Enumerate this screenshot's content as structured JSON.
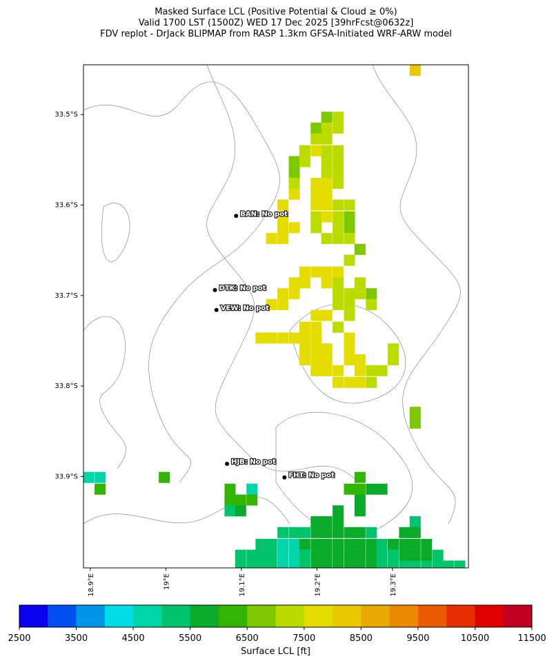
{
  "title": [
    "Masked Surface LCL (Positive Potential & Cloud ≥ 0%)",
    "Valid 1700 LST (1500Z) WED 17 Dec 2025 [39hrFcst@0632z]",
    "FDV replot - DrJack BLIPMAP from RASP 1.3km GFSA-Initiated WRF-ARW model"
  ],
  "map": {
    "xlim": [
      18.891,
      19.4005
    ],
    "ylim": [
      -34.001,
      -33.445
    ],
    "xticks": [
      {
        "value": 18.9,
        "label": "18.9°E"
      },
      {
        "value": 19.0,
        "label": "19°E"
      },
      {
        "value": 19.1,
        "label": "19.1°E"
      },
      {
        "value": 19.2,
        "label": "19.2°E"
      },
      {
        "value": 19.3,
        "label": "19.3°E"
      }
    ],
    "yticks": [
      {
        "value": -33.5,
        "label": "33.5°S"
      },
      {
        "value": -33.6,
        "label": "33.6°S"
      },
      {
        "value": -33.7,
        "label": "33.7°S"
      },
      {
        "value": -33.8,
        "label": "33.8°S"
      },
      {
        "value": -33.9,
        "label": "33.9°S"
      }
    ],
    "stations": [
      {
        "label": "BAN: No pot",
        "lon": 19.093,
        "lat": -33.612
      },
      {
        "label": "DTK: No pot",
        "lon": 19.065,
        "lat": -33.694
      },
      {
        "label": "VEW: No pot",
        "lon": 19.067,
        "lat": -33.716
      },
      {
        "label": "HJB: No pot",
        "lon": 19.081,
        "lat": -33.886
      },
      {
        "label": "FHT: No pot",
        "lon": 19.157,
        "lat": -33.901
      }
    ],
    "cells": [
      [
        19.213,
        -33.503,
        6750
      ],
      [
        19.228,
        -33.503,
        7250
      ],
      [
        19.199,
        -33.515,
        6750
      ],
      [
        19.213,
        -33.515,
        7250
      ],
      [
        19.228,
        -33.515,
        7250
      ],
      [
        19.199,
        -33.527,
        7250
      ],
      [
        19.213,
        -33.527,
        7250
      ],
      [
        19.184,
        -33.54,
        7250
      ],
      [
        19.199,
        -33.54,
        7750
      ],
      [
        19.213,
        -33.54,
        7250
      ],
      [
        19.228,
        -33.54,
        7250
      ],
      [
        19.17,
        -33.552,
        6750
      ],
      [
        19.184,
        -33.552,
        7250
      ],
      [
        19.213,
        -33.552,
        7250
      ],
      [
        19.228,
        -33.552,
        7250
      ],
      [
        19.17,
        -33.564,
        6750
      ],
      [
        19.213,
        -33.564,
        7250
      ],
      [
        19.228,
        -33.564,
        7250
      ],
      [
        19.17,
        -33.576,
        7250
      ],
      [
        19.199,
        -33.576,
        7750
      ],
      [
        19.213,
        -33.576,
        7750
      ],
      [
        19.228,
        -33.576,
        7250
      ],
      [
        19.17,
        -33.588,
        7750
      ],
      [
        19.199,
        -33.588,
        7750
      ],
      [
        19.213,
        -33.588,
        7750
      ],
      [
        19.155,
        -33.6,
        7750
      ],
      [
        19.199,
        -33.6,
        7750
      ],
      [
        19.213,
        -33.6,
        7750
      ],
      [
        19.228,
        -33.6,
        7250
      ],
      [
        19.243,
        -33.6,
        7250
      ],
      [
        19.155,
        -33.613,
        7750
      ],
      [
        19.199,
        -33.613,
        7250
      ],
      [
        19.213,
        -33.613,
        7750
      ],
      [
        19.228,
        -33.613,
        7250
      ],
      [
        19.243,
        -33.613,
        6750
      ],
      [
        19.155,
        -33.625,
        7750
      ],
      [
        19.17,
        -33.625,
        7750
      ],
      [
        19.199,
        -33.625,
        7250
      ],
      [
        19.228,
        -33.625,
        7250
      ],
      [
        19.243,
        -33.625,
        6750
      ],
      [
        19.14,
        -33.637,
        7750
      ],
      [
        19.155,
        -33.637,
        7750
      ],
      [
        19.213,
        -33.637,
        7250
      ],
      [
        19.228,
        -33.637,
        7250
      ],
      [
        19.243,
        -33.637,
        7250
      ],
      [
        19.257,
        -33.649,
        6750
      ],
      [
        19.243,
        -33.661,
        7250
      ],
      [
        19.184,
        -33.674,
        7750
      ],
      [
        19.199,
        -33.674,
        7750
      ],
      [
        19.213,
        -33.674,
        7750
      ],
      [
        19.228,
        -33.674,
        7750
      ],
      [
        19.17,
        -33.686,
        7750
      ],
      [
        19.184,
        -33.686,
        7750
      ],
      [
        19.213,
        -33.686,
        7750
      ],
      [
        19.228,
        -33.686,
        7250
      ],
      [
        19.257,
        -33.686,
        7250
      ],
      [
        19.155,
        -33.698,
        7750
      ],
      [
        19.17,
        -33.698,
        7750
      ],
      [
        19.228,
        -33.698,
        7250
      ],
      [
        19.243,
        -33.698,
        7250
      ],
      [
        19.257,
        -33.698,
        7250
      ],
      [
        19.272,
        -33.698,
        6750
      ],
      [
        19.14,
        -33.71,
        7750
      ],
      [
        19.155,
        -33.71,
        7750
      ],
      [
        19.228,
        -33.71,
        7250
      ],
      [
        19.243,
        -33.71,
        7250
      ],
      [
        19.272,
        -33.71,
        7250
      ],
      [
        19.199,
        -33.722,
        7750
      ],
      [
        19.213,
        -33.722,
        7750
      ],
      [
        19.243,
        -33.722,
        7250
      ],
      [
        19.184,
        -33.735,
        7750
      ],
      [
        19.199,
        -33.735,
        7750
      ],
      [
        19.228,
        -33.735,
        7250
      ],
      [
        19.126,
        -33.747,
        7750
      ],
      [
        19.14,
        -33.747,
        7750
      ],
      [
        19.155,
        -33.747,
        7750
      ],
      [
        19.17,
        -33.747,
        7750
      ],
      [
        19.184,
        -33.747,
        7750
      ],
      [
        19.199,
        -33.747,
        7750
      ],
      [
        19.243,
        -33.747,
        7750
      ],
      [
        19.184,
        -33.759,
        7750
      ],
      [
        19.199,
        -33.759,
        7750
      ],
      [
        19.213,
        -33.759,
        7750
      ],
      [
        19.243,
        -33.759,
        7750
      ],
      [
        19.301,
        -33.759,
        7250
      ],
      [
        19.184,
        -33.771,
        7750
      ],
      [
        19.199,
        -33.771,
        7750
      ],
      [
        19.213,
        -33.771,
        7750
      ],
      [
        19.243,
        -33.771,
        7750
      ],
      [
        19.257,
        -33.771,
        7750
      ],
      [
        19.301,
        -33.771,
        7250
      ],
      [
        19.199,
        -33.783,
        7750
      ],
      [
        19.213,
        -33.783,
        7750
      ],
      [
        19.228,
        -33.783,
        7750
      ],
      [
        19.257,
        -33.783,
        7750
      ],
      [
        19.272,
        -33.783,
        7250
      ],
      [
        19.286,
        -33.783,
        7250
      ],
      [
        19.228,
        -33.796,
        7750
      ],
      [
        19.243,
        -33.796,
        7750
      ],
      [
        19.257,
        -33.796,
        7750
      ],
      [
        19.272,
        -33.796,
        7250
      ],
      [
        19.33,
        -33.829,
        6750
      ],
      [
        19.33,
        -33.841,
        6750
      ],
      [
        19.33,
        -33.451,
        8250
      ],
      [
        18.898,
        -33.901,
        4750
      ],
      [
        18.913,
        -33.901,
        4750
      ],
      [
        18.913,
        -33.914,
        6250
      ],
      [
        18.998,
        -33.901,
        6250
      ],
      [
        19.085,
        -33.914,
        6250
      ],
      [
        19.114,
        -33.914,
        4750
      ],
      [
        19.085,
        -33.926,
        6250
      ],
      [
        19.099,
        -33.926,
        6250
      ],
      [
        19.114,
        -33.926,
        6250
      ],
      [
        19.085,
        -33.938,
        5250
      ],
      [
        19.099,
        -33.938,
        5750
      ],
      [
        19.257,
        -33.901,
        6250
      ],
      [
        19.243,
        -33.914,
        6250
      ],
      [
        19.257,
        -33.914,
        6250
      ],
      [
        19.272,
        -33.914,
        5750
      ],
      [
        19.286,
        -33.914,
        5750
      ],
      [
        19.257,
        -33.926,
        5750
      ],
      [
        19.257,
        -33.938,
        5750
      ],
      [
        19.228,
        -33.938,
        5750
      ],
      [
        19.199,
        -33.95,
        5750
      ],
      [
        19.213,
        -33.95,
        5750
      ],
      [
        19.228,
        -33.95,
        5750
      ],
      [
        19.33,
        -33.95,
        5250
      ],
      [
        19.155,
        -33.962,
        5250
      ],
      [
        19.17,
        -33.962,
        5250
      ],
      [
        19.184,
        -33.962,
        5250
      ],
      [
        19.199,
        -33.962,
        5750
      ],
      [
        19.213,
        -33.962,
        5750
      ],
      [
        19.228,
        -33.962,
        5750
      ],
      [
        19.243,
        -33.962,
        5750
      ],
      [
        19.257,
        -33.962,
        5750
      ],
      [
        19.272,
        -33.962,
        5250
      ],
      [
        19.316,
        -33.962,
        5750
      ],
      [
        19.33,
        -33.962,
        5750
      ],
      [
        19.126,
        -33.975,
        5250
      ],
      [
        19.14,
        -33.975,
        5250
      ],
      [
        19.155,
        -33.975,
        4750
      ],
      [
        19.17,
        -33.975,
        4750
      ],
      [
        19.184,
        -33.975,
        5750
      ],
      [
        19.199,
        -33.975,
        5750
      ],
      [
        19.213,
        -33.975,
        5750
      ],
      [
        19.228,
        -33.975,
        5750
      ],
      [
        19.243,
        -33.975,
        5750
      ],
      [
        19.257,
        -33.975,
        5750
      ],
      [
        19.272,
        -33.975,
        5750
      ],
      [
        19.286,
        -33.975,
        5250
      ],
      [
        19.301,
        -33.975,
        5750
      ],
      [
        19.316,
        -33.975,
        5750
      ],
      [
        19.33,
        -33.975,
        5750
      ],
      [
        19.345,
        -33.975,
        5750
      ],
      [
        19.099,
        -33.987,
        5250
      ],
      [
        19.114,
        -33.987,
        5250
      ],
      [
        19.126,
        -33.987,
        5250
      ],
      [
        19.14,
        -33.987,
        5250
      ],
      [
        19.155,
        -33.987,
        4750
      ],
      [
        19.17,
        -33.987,
        4750
      ],
      [
        19.184,
        -33.987,
        5250
      ],
      [
        19.199,
        -33.987,
        5750
      ],
      [
        19.213,
        -33.987,
        5750
      ],
      [
        19.228,
        -33.987,
        5750
      ],
      [
        19.243,
        -33.987,
        5750
      ],
      [
        19.257,
        -33.987,
        5750
      ],
      [
        19.272,
        -33.987,
        5750
      ],
      [
        19.286,
        -33.987,
        5250
      ],
      [
        19.301,
        -33.987,
        5250
      ],
      [
        19.316,
        -33.987,
        5750
      ],
      [
        19.33,
        -33.987,
        5750
      ],
      [
        19.345,
        -33.987,
        5750
      ],
      [
        19.36,
        -33.987,
        5250
      ],
      [
        19.099,
        -33.999,
        5250
      ],
      [
        19.114,
        -33.999,
        5250
      ],
      [
        19.126,
        -33.999,
        5250
      ],
      [
        19.14,
        -33.999,
        5250
      ],
      [
        19.155,
        -33.999,
        4750
      ],
      [
        19.17,
        -33.999,
        4750
      ],
      [
        19.184,
        -33.999,
        5250
      ],
      [
        19.199,
        -33.999,
        5750
      ],
      [
        19.213,
        -33.999,
        5750
      ],
      [
        19.228,
        -33.999,
        5750
      ],
      [
        19.243,
        -33.999,
        5750
      ],
      [
        19.257,
        -33.999,
        5750
      ],
      [
        19.272,
        -33.999,
        5750
      ],
      [
        19.286,
        -33.999,
        5250
      ],
      [
        19.301,
        -33.999,
        5250
      ],
      [
        19.316,
        -33.999,
        5250
      ],
      [
        19.33,
        -33.999,
        5250
      ],
      [
        19.345,
        -33.999,
        5250
      ],
      [
        19.36,
        -33.999,
        5250
      ],
      [
        19.374,
        -33.999,
        5250
      ],
      [
        19.389,
        -33.999,
        5250
      ]
    ]
  },
  "colorbar": {
    "label": "Surface LCL [ft]",
    "levels": [
      2500,
      3000,
      3500,
      4000,
      4500,
      5000,
      5500,
      6000,
      6500,
      7000,
      7500,
      8000,
      8500,
      9000,
      9500,
      10000,
      10500,
      11000,
      11500
    ],
    "colors": [
      "#0a00f0",
      "#0050f0",
      "#0096e8",
      "#00dce6",
      "#00d6aa",
      "#00c46c",
      "#0aaa2a",
      "#32b400",
      "#7dc800",
      "#bcdc00",
      "#e5dc00",
      "#ebc700",
      "#e8aa00",
      "#eb8a00",
      "#eb5a00",
      "#e62e00",
      "#e00000",
      "#c0001e"
    ],
    "ticks": [
      2500,
      3500,
      4500,
      5500,
      6500,
      7500,
      8500,
      9500,
      10500,
      11500
    ]
  }
}
